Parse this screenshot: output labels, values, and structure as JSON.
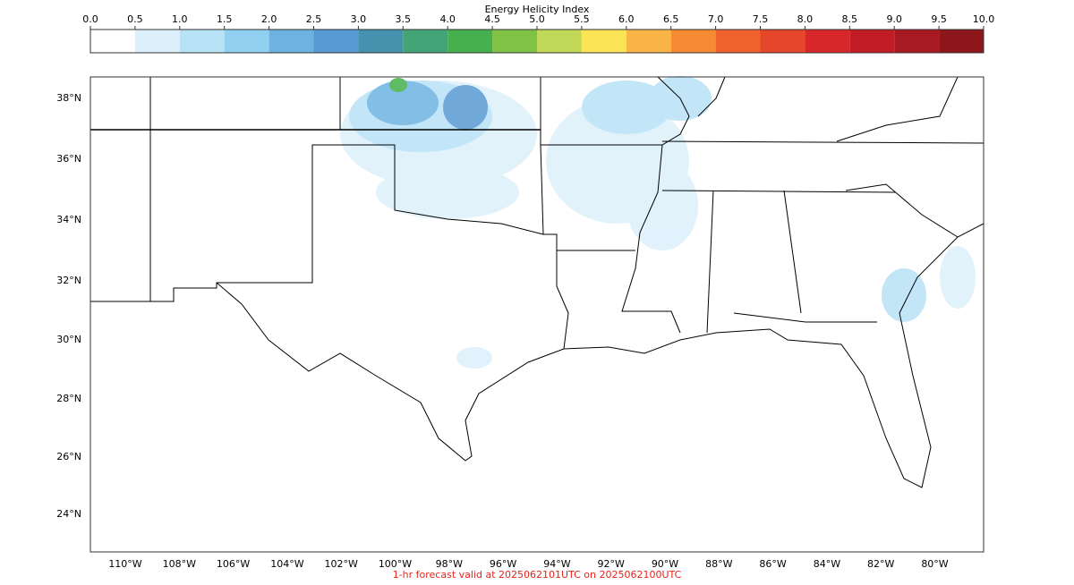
{
  "colorbar": {
    "title": "Energy Helicity Index",
    "ticks": [
      {
        "value": 0,
        "label": "0.0"
      },
      0.5,
      {
        "value": 1,
        "label": "1.0"
      },
      1.5,
      {
        "value": 2,
        "label": "2.0"
      },
      2.5,
      {
        "value": 3,
        "label": "3.0"
      },
      3.5,
      {
        "value": 4,
        "label": "4.0"
      },
      4.5,
      {
        "value": 5,
        "label": "5.0"
      },
      5.5,
      {
        "value": 6,
        "label": "6.0"
      },
      6.5,
      {
        "value": 7,
        "label": "7.0"
      },
      7.5,
      {
        "value": 8,
        "label": "8.0"
      },
      8.5,
      {
        "value": 9,
        "label": "9.0"
      },
      9.5,
      {
        "value": 10,
        "label": "10.0"
      }
    ],
    "colors": [
      "#ffffff",
      "#dcf0fb",
      "#b8e2f6",
      "#92d0f1",
      "#6db3e2",
      "#589ad4",
      "#4592ae",
      "#43a477",
      "#45b04d",
      "#7fc245",
      "#c2d858",
      "#fbe557",
      "#f9b446",
      "#f68b33",
      "#f1612d",
      "#e6462a",
      "#d8272a",
      "#c21d26",
      "#a81a22",
      "#8d161b"
    ]
  },
  "map": {
    "lat_labels": [
      "38°N",
      "36°N",
      "34°N",
      "32°N",
      "30°N",
      "28°N",
      "26°N",
      "24°N"
    ],
    "lon_labels": [
      "110°W",
      "108°W",
      "106°W",
      "104°W",
      "102°W",
      "100°W",
      "98°W",
      "96°W",
      "94°W",
      "92°W",
      "90°W",
      "88°W",
      "86°W",
      "84°W",
      "82°W",
      "80°W"
    ]
  },
  "footer": "1-hr forecast valid at 2025062101UTC on 2025062100UTC"
}
